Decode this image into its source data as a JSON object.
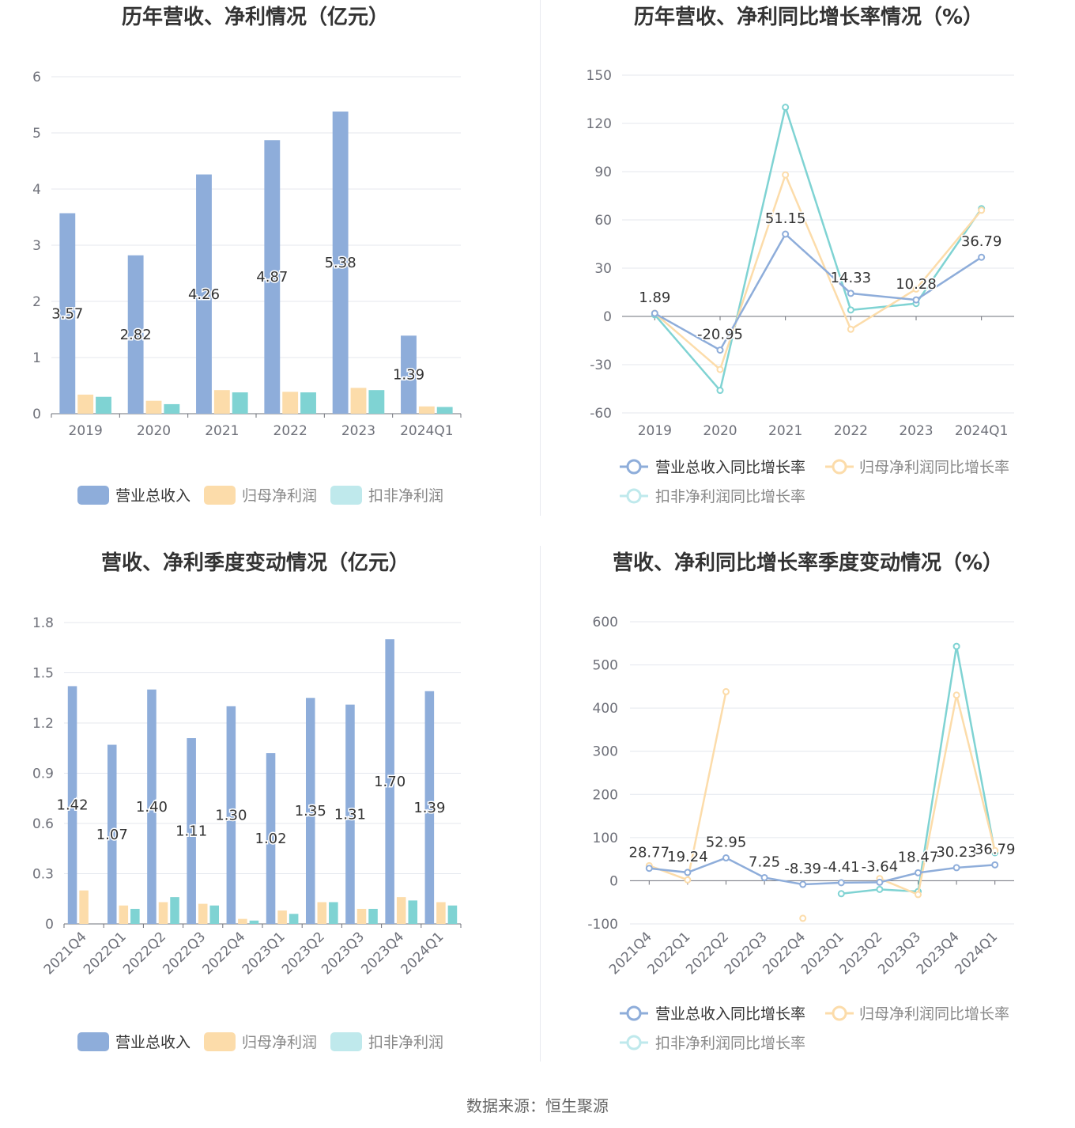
{
  "colors": {
    "revenue": "#8eadda",
    "net_profit": "#fcdcaa",
    "deducted_profit": "#7fd3d3",
    "deducted_profit_legend": "#bfe9ec",
    "grid": "#e4e7ee",
    "axis": "#6e7079",
    "tick_label": "#6e7079",
    "title": "#333333"
  },
  "source": "数据来源：恒生聚源",
  "chart_data": [
    {
      "id": "annual-amount",
      "type": "bar",
      "title": "历年营收、净利情况（亿元）",
      "categories": [
        "2019",
        "2020",
        "2021",
        "2022",
        "2023",
        "2024Q1"
      ],
      "ylim": [
        0,
        6
      ],
      "yticks": [
        0,
        1,
        2,
        3,
        4,
        5,
        6
      ],
      "grid": true,
      "legend_position": "bottom",
      "series": [
        {
          "name": "营业总收入",
          "values": [
            3.57,
            2.82,
            4.26,
            4.87,
            5.38,
            1.39
          ],
          "labels": [
            "3.57",
            "2.82",
            "4.26",
            "4.87",
            "5.38",
            "1.39"
          ]
        },
        {
          "name": "归母净利润",
          "values": [
            0.34,
            0.23,
            0.42,
            0.39,
            0.46,
            0.13
          ]
        },
        {
          "name": "扣非净利润",
          "values": [
            0.3,
            0.17,
            0.38,
            0.38,
            0.42,
            0.12
          ]
        }
      ]
    },
    {
      "id": "annual-growth",
      "type": "line",
      "title": "历年营收、净利同比增长率情况（%）",
      "categories": [
        "2019",
        "2020",
        "2021",
        "2022",
        "2023",
        "2024Q1"
      ],
      "ylim": [
        -60,
        150
      ],
      "yticks": [
        -60,
        -30,
        0,
        30,
        60,
        90,
        120,
        150
      ],
      "grid": true,
      "legend_position": "bottom",
      "series": [
        {
          "name": "营业总收入同比增长率",
          "values": [
            1.89,
            -20.95,
            51.15,
            14.33,
            10.28,
            36.79
          ],
          "labels": [
            "1.89",
            "-20.95",
            "51.15",
            "14.33",
            "10.28",
            "36.79"
          ]
        },
        {
          "name": "归母净利润同比增长率",
          "values": [
            2,
            -33,
            88,
            -8,
            17,
            66
          ]
        },
        {
          "name": "扣非净利润同比增长率",
          "values": [
            1,
            -46,
            130,
            4,
            8,
            67
          ]
        }
      ]
    },
    {
      "id": "quarterly-amount",
      "type": "bar",
      "title": "营收、净利季度变动情况（亿元）",
      "categories": [
        "2021Q4",
        "2022Q1",
        "2022Q2",
        "2022Q3",
        "2022Q4",
        "2023Q1",
        "2023Q2",
        "2023Q3",
        "2023Q4",
        "2024Q1"
      ],
      "ylim": [
        0,
        1.8
      ],
      "yticks": [
        0,
        0.3,
        0.6,
        0.9,
        1.2,
        1.5,
        1.8
      ],
      "ytick_labels": [
        "0",
        "0.3",
        "0.6",
        "0.9",
        "1.2",
        "1.5",
        "1.8"
      ],
      "grid": true,
      "legend_position": "bottom",
      "series": [
        {
          "name": "营业总收入",
          "values": [
            1.42,
            1.07,
            1.4,
            1.11,
            1.3,
            1.02,
            1.35,
            1.31,
            1.7,
            1.39
          ],
          "labels": [
            "1.42",
            "1.07",
            "1.40",
            "1.11",
            "1.30",
            "1.02",
            "1.35",
            "1.31",
            "1.70",
            "1.39"
          ]
        },
        {
          "name": "归母净利润",
          "values": [
            0.2,
            0.11,
            0.13,
            0.12,
            0.03,
            0.08,
            0.13,
            0.09,
            0.16,
            0.13
          ]
        },
        {
          "name": "扣非净利润",
          "values": [
            0,
            0.09,
            0.16,
            0.11,
            0.02,
            0.06,
            0.13,
            0.09,
            0.14,
            0.11
          ]
        }
      ]
    },
    {
      "id": "quarterly-growth",
      "type": "line",
      "title": "营收、净利同比增长率季度变动情况（%）",
      "categories": [
        "2021Q4",
        "2022Q1",
        "2022Q2",
        "2022Q3",
        "2022Q4",
        "2023Q1",
        "2023Q2",
        "2023Q3",
        "2023Q4",
        "2024Q1"
      ],
      "ylim": [
        -100,
        600
      ],
      "yticks": [
        -100,
        0,
        100,
        200,
        300,
        400,
        500,
        600
      ],
      "grid": true,
      "legend_position": "bottom",
      "series": [
        {
          "name": "营业总收入同比增长率",
          "values": [
            28.77,
            19.24,
            52.95,
            7.25,
            -8.39,
            -4.41,
            -3.64,
            18.47,
            30.23,
            36.79
          ],
          "labels": [
            "28.77",
            "19.24",
            "52.95",
            "7.25",
            "-8.39",
            "-4.41",
            "-3.64",
            "18.47",
            "30.23",
            "36.79"
          ]
        },
        {
          "name": "归母净利润同比增长率",
          "values": [
            35,
            2,
            438,
            null,
            -87,
            null,
            5,
            -32,
            430,
            70
          ]
        },
        {
          "name": "扣非净利润同比增长率",
          "values": [
            null,
            null,
            null,
            null,
            null,
            -30,
            -20,
            -25,
            543,
            65
          ]
        }
      ]
    }
  ]
}
